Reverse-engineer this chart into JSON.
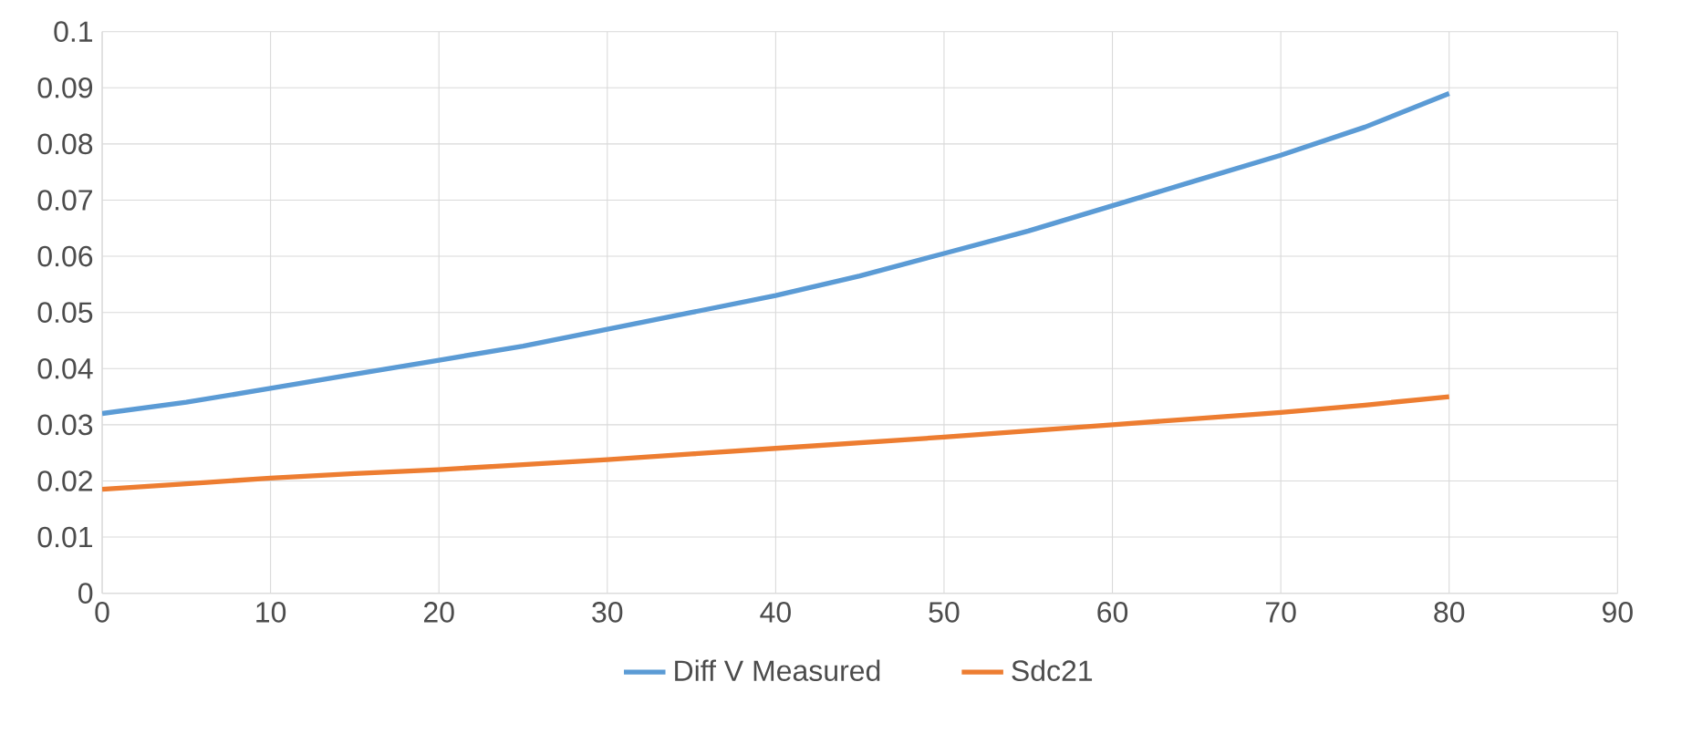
{
  "chart_data": {
    "type": "line",
    "x": [
      0,
      5,
      10,
      15,
      20,
      25,
      30,
      35,
      40,
      45,
      50,
      55,
      60,
      65,
      70,
      75,
      80
    ],
    "series": [
      {
        "name": "Diff V Measured",
        "color": "#5b9bd5",
        "values": [
          0.032,
          0.034,
          0.0365,
          0.039,
          0.0415,
          0.044,
          0.047,
          0.05,
          0.053,
          0.0565,
          0.0605,
          0.0645,
          0.069,
          0.0735,
          0.078,
          0.083,
          0.089
        ]
      },
      {
        "name": "Sdc21",
        "color": "#ed7d31",
        "values": [
          0.0185,
          0.0195,
          0.0205,
          0.0213,
          0.022,
          0.0229,
          0.0238,
          0.0248,
          0.0258,
          0.0268,
          0.0278,
          0.0289,
          0.03,
          0.0311,
          0.0322,
          0.0335,
          0.035
        ]
      }
    ],
    "xlim": [
      0,
      90
    ],
    "xticks": [
      0,
      10,
      20,
      30,
      40,
      50,
      60,
      70,
      80,
      90
    ],
    "ylim": [
      0,
      0.1
    ],
    "yticks": [
      0,
      0.01,
      0.02,
      0.03,
      0.04,
      0.05,
      0.06,
      0.07,
      0.08,
      0.09,
      0.1
    ],
    "grid": true,
    "legend": "bottom",
    "marker": "none",
    "line_style": "solid"
  }
}
